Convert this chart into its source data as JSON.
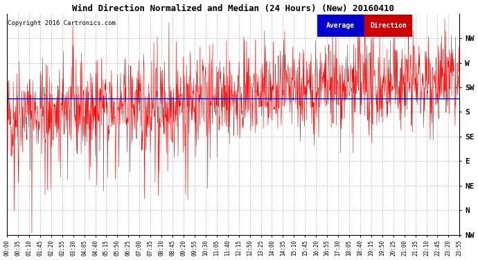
{
  "title": "Wind Direction Normalized and Median (24 Hours) (New) 20160410",
  "copyright": "Copyright 2016 Cartronics.com",
  "background_color": "#ffffff",
  "plot_bg_color": "#ffffff",
  "grid_color": "#bbbbbb",
  "line_color": "#ff0000",
  "median_color": "#0000cc",
  "median_value": 205,
  "ytick_labels": [
    "NW",
    "W",
    "SW",
    "S",
    "SE",
    "E",
    "NE",
    "N",
    "NW"
  ],
  "ytick_values": [
    315,
    270,
    225,
    180,
    135,
    90,
    45,
    0,
    -45
  ],
  "ylim": [
    -45,
    360
  ],
  "legend_average_bg": "#0000cc",
  "legend_direction_bg": "#cc0000",
  "legend_average_text": "Average",
  "legend_direction_text": "Direction",
  "time_labels": [
    "00:00",
    "00:35",
    "01:10",
    "01:45",
    "02:20",
    "02:55",
    "03:30",
    "04:05",
    "04:40",
    "05:15",
    "05:50",
    "06:25",
    "07:00",
    "07:35",
    "08:10",
    "08:45",
    "09:20",
    "09:55",
    "10:30",
    "11:05",
    "11:40",
    "12:15",
    "12:50",
    "13:25",
    "14:00",
    "14:35",
    "15:10",
    "15:45",
    "16:20",
    "16:55",
    "17:30",
    "18:05",
    "18:40",
    "19:15",
    "19:50",
    "20:25",
    "21:00",
    "21:35",
    "22:10",
    "22:45",
    "23:20",
    "23:55"
  ],
  "num_points": 1440,
  "seed": 42
}
